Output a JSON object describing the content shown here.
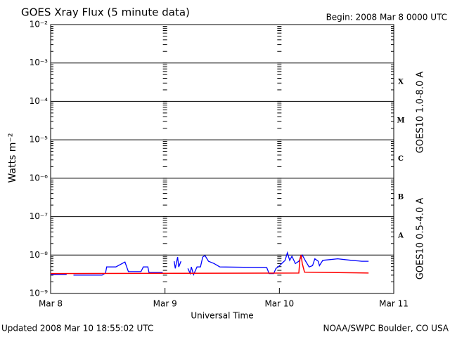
{
  "chart_data": {
    "type": "line",
    "title": "GOES Xray Flux (5 minute data)",
    "subtitle": "Begin:  2008 Mar 8 0000 UTC",
    "x_label": "Universal Time",
    "y_label": "Watts m⁻²",
    "footer_left": "Updated 2008 Mar 10 18:55:02 UTC",
    "footer_right": "NOAA/SWPC Boulder, CO USA",
    "y_scale": "log",
    "grid": true,
    "xlim": [
      0,
      3
    ],
    "xticks": [
      {
        "value": 0,
        "label": "Mar 8"
      },
      {
        "value": 1,
        "label": "Mar 9"
      },
      {
        "value": 2,
        "label": "Mar 10"
      },
      {
        "value": 3,
        "label": "Mar 11"
      }
    ],
    "ylim": [
      1e-09,
      0.01
    ],
    "yticks": [
      {
        "value": 1e-09,
        "label": "10⁻⁹"
      },
      {
        "value": 1e-08,
        "label": "10⁻⁸"
      },
      {
        "value": 1e-07,
        "label": "10⁻⁷"
      },
      {
        "value": 1e-06,
        "label": "10⁻⁶"
      },
      {
        "value": 1e-05,
        "label": "10⁻⁵"
      },
      {
        "value": 0.0001,
        "label": "10⁻⁴"
      },
      {
        "value": 0.001,
        "label": "10⁻³"
      },
      {
        "value": 0.01,
        "label": "10⁻²"
      }
    ],
    "class_labels": [
      {
        "label": "A",
        "value": 1e-08
      },
      {
        "label": "B",
        "value": 1e-07
      },
      {
        "label": "C",
        "value": 1e-06
      },
      {
        "label": "M",
        "value": 1e-05
      },
      {
        "label": "X",
        "value": 0.0001
      }
    ],
    "series": [
      {
        "name": "GOES10 0.5-4.0 A",
        "color": "#0000ff",
        "x": [
          0,
          0.14,
          0.17,
          0.2,
          0.45,
          0.48,
          0.49,
          0.57,
          0.65,
          0.68,
          0.79,
          0.81,
          0.85,
          0.86,
          0.98,
          1.03,
          1.08,
          1.09,
          1.11,
          1.12,
          1.14,
          1.18,
          1.2,
          1.22,
          1.23,
          1.25,
          1.28,
          1.31,
          1.33,
          1.35,
          1.38,
          1.43,
          1.48,
          1.89,
          1.91,
          1.95,
          1.97,
          1.99,
          2.02,
          2.05,
          2.07,
          2.09,
          2.11,
          2.14,
          2.17,
          2.2,
          2.23,
          2.26,
          2.29,
          2.31,
          2.34,
          2.35,
          2.38,
          2.51,
          2.63,
          2.72,
          2.78
        ],
        "values": [
          3.1e-09,
          3.1e-09,
          null,
          3e-09,
          3e-09,
          3.4e-09,
          4.9e-09,
          4.9e-09,
          6.6e-09,
          3.7e-09,
          3.7e-09,
          4.9e-09,
          4.9e-09,
          3.5e-09,
          3.5e-09,
          null,
          6.9e-09,
          4.5e-09,
          8.9e-09,
          4.9e-09,
          6.9e-09,
          null,
          4.5e-09,
          3.3e-09,
          4.9e-09,
          3.1e-09,
          4.9e-09,
          4.9e-09,
          8.9e-09,
          9.7e-09,
          6.9e-09,
          6e-09,
          4.9e-09,
          4.7e-09,
          3.3e-09,
          3.3e-09,
          4.5e-09,
          4.9e-09,
          6e-09,
          7.3e-09,
          1.15e-08,
          7.3e-09,
          9.3e-09,
          6e-09,
          6.9e-09,
          1e-08,
          6.9e-09,
          4.9e-09,
          5.3e-09,
          8e-09,
          6.9e-09,
          5.3e-09,
          7.3e-09,
          8e-09,
          7.3e-09,
          6.9e-09,
          6.9e-09
        ]
      },
      {
        "name": "GOES10 1.0-8.0 A",
        "color": "#ff0000",
        "x": [
          0,
          2.17,
          2.18,
          2.19,
          2.2,
          2.22,
          2.78
        ],
        "values": [
          3.3e-09,
          3.4e-09,
          8e-09,
          1e-08,
          6e-09,
          3.6e-09,
          3.4e-09
        ]
      }
    ]
  }
}
